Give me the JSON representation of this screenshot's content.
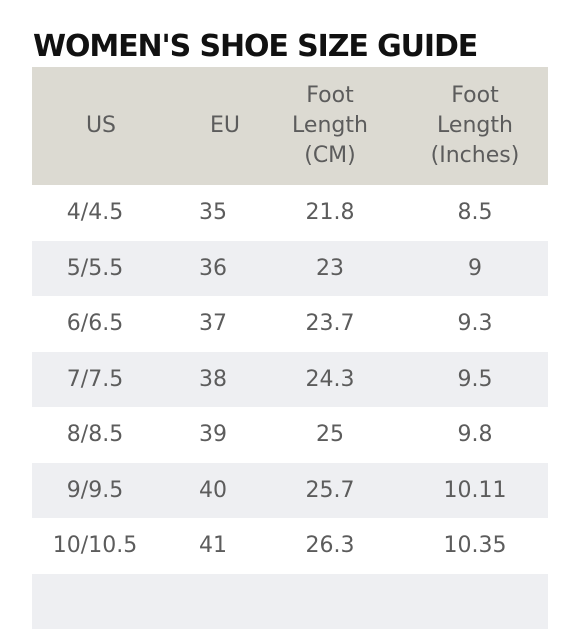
{
  "title": "WOMEN'S SHOE SIZE GUIDE",
  "colors": {
    "header_bg": "#dcdad2",
    "stripe_bg": "#eeeff2",
    "text": "#5c5c5c",
    "title": "#111111"
  },
  "table": {
    "headers": [
      "US",
      "EU",
      "Foot Length (CM)",
      "Foot Length (Inches)"
    ],
    "rows": [
      [
        "4/4.5",
        "35",
        "21.8",
        "8.5"
      ],
      [
        "5/5.5",
        "36",
        "23",
        "9"
      ],
      [
        "6/6.5",
        "37",
        "23.7",
        "9.3"
      ],
      [
        "7/7.5",
        "38",
        "24.3",
        "9.5"
      ],
      [
        "8/8.5",
        "39",
        "25",
        "9.8"
      ],
      [
        "9/9.5",
        "40",
        "25.7",
        "10.11"
      ],
      [
        "10/10.5",
        "41",
        "26.3",
        "10.35"
      ],
      [
        "",
        "",
        "",
        ""
      ]
    ]
  }
}
